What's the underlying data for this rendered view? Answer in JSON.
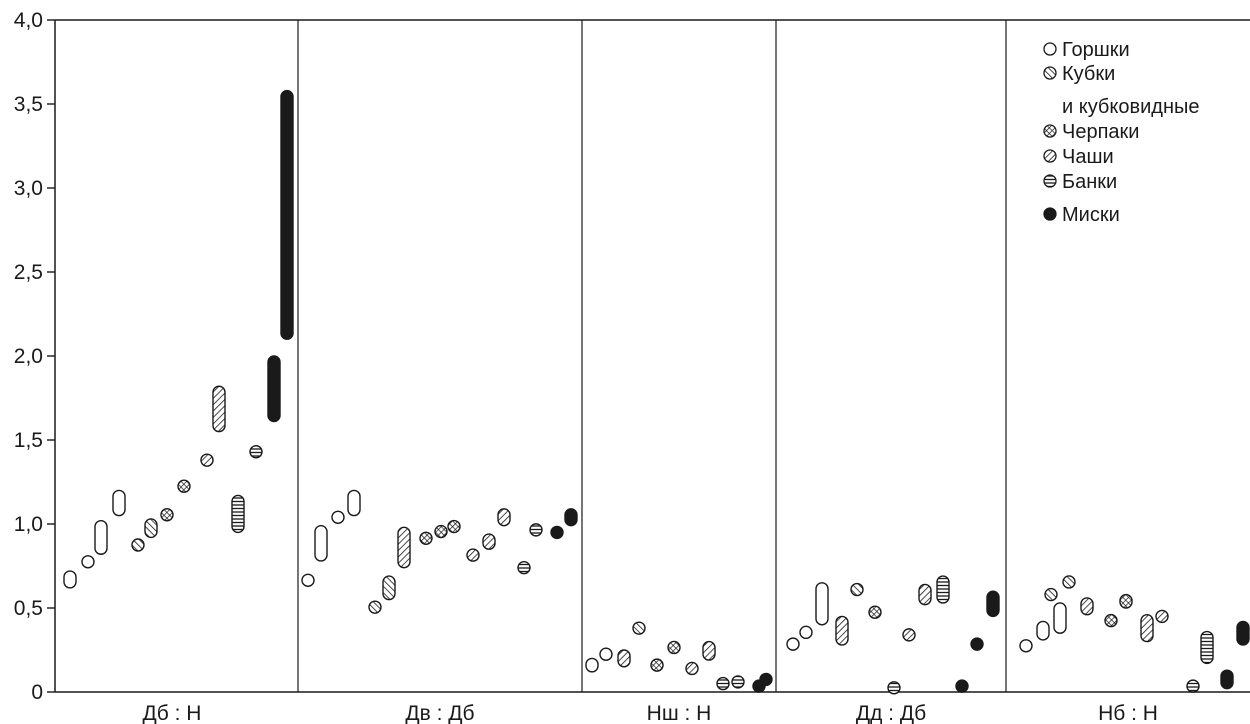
{
  "chart_data": {
    "type": "scatter",
    "ylim": [
      0,
      4
    ],
    "yticks": [
      "0",
      "0,5",
      "1,0",
      "1,5",
      "2,0",
      "2,5",
      "3,0",
      "3,5",
      "4,0"
    ],
    "categories": [
      "Дб : Н",
      "Дв : Дб",
      "Нш : Н",
      "Дд : Дб",
      "Нб : Н"
    ],
    "legend": {
      "position": "top-right",
      "items": [
        {
          "key": "gorshki",
          "label": "Горшки",
          "pattern": "open"
        },
        {
          "key": "kubki",
          "label": "Кубки",
          "label2": "и кубковидные",
          "pattern": "hatch-back"
        },
        {
          "key": "cherpaki",
          "label": "Черпаки",
          "pattern": "crosshatch"
        },
        {
          "key": "chashi",
          "label": "Чаши",
          "pattern": "hatch-fwd"
        },
        {
          "key": "banki",
          "label": "Банки",
          "pattern": "horizontal"
        },
        {
          "key": "miski",
          "label": "Миски",
          "pattern": "solid"
        }
      ]
    },
    "series": [
      {
        "key": "gorshki",
        "ranges": [
          {
            "g": 0,
            "lo": 0.62,
            "hi": 0.72
          },
          {
            "g": 0,
            "lo": 0.75,
            "hi": 0.8
          },
          {
            "g": 0,
            "lo": 0.82,
            "hi": 1.02
          },
          {
            "g": 0,
            "lo": 1.05,
            "hi": 1.2
          },
          {
            "g": 1,
            "lo": 0.64,
            "hi": 0.69
          },
          {
            "g": 1,
            "lo": 0.78,
            "hi": 0.99
          },
          {
            "g": 1,
            "lo": 1.01,
            "hi": 1.07
          },
          {
            "g": 1,
            "lo": 1.05,
            "hi": 1.2
          },
          {
            "g": 2,
            "lo": 0.12,
            "hi": 0.2
          },
          {
            "g": 2,
            "lo": 0.2,
            "hi": 0.25
          },
          {
            "g": 3,
            "lo": 0.26,
            "hi": 0.31
          },
          {
            "g": 3,
            "lo": 0.33,
            "hi": 0.38
          },
          {
            "g": 3,
            "lo": 0.4,
            "hi": 0.65
          },
          {
            "g": 4,
            "lo": 0.25,
            "hi": 0.3
          },
          {
            "g": 4,
            "lo": 0.31,
            "hi": 0.42
          },
          {
            "g": 4,
            "lo": 0.35,
            "hi": 0.53
          }
        ]
      },
      {
        "key": "kubki",
        "ranges": [
          {
            "g": 0,
            "lo": 0.86,
            "hi": 0.89
          },
          {
            "g": 0,
            "lo": 0.92,
            "hi": 1.03
          },
          {
            "g": 1,
            "lo": 0.49,
            "hi": 0.52
          },
          {
            "g": 1,
            "lo": 0.55,
            "hi": 0.69
          },
          {
            "g": 2,
            "lo": 0.36,
            "hi": 0.4
          },
          {
            "g": 3,
            "lo": 0.58,
            "hi": 0.64
          },
          {
            "g": 4,
            "lo": 0.63,
            "hi": 0.68
          },
          {
            "g": 4,
            "lo": 0.56,
            "hi": 0.6
          }
        ]
      },
      {
        "key": "cherpaki",
        "ranges": [
          {
            "g": 0,
            "lo": 1.04,
            "hi": 1.07
          },
          {
            "g": 0,
            "lo": 1.21,
            "hi": 1.24
          },
          {
            "g": 1,
            "lo": 0.9,
            "hi": 0.93
          },
          {
            "g": 1,
            "lo": 0.94,
            "hi": 0.97
          },
          {
            "g": 1,
            "lo": 0.97,
            "hi": 1.0
          },
          {
            "g": 2,
            "lo": 0.14,
            "hi": 0.18
          },
          {
            "g": 2,
            "lo": 0.25,
            "hi": 0.28
          },
          {
            "g": 3,
            "lo": 0.45,
            "hi": 0.5
          },
          {
            "g": 4,
            "lo": 0.41,
            "hi": 0.44
          },
          {
            "g": 4,
            "lo": 0.5,
            "hi": 0.58
          }
        ]
      },
      {
        "key": "chashi",
        "ranges": [
          {
            "g": 0,
            "lo": 1.35,
            "hi": 1.41
          },
          {
            "g": 0,
            "lo": 1.55,
            "hi": 1.82
          },
          {
            "g": 1,
            "lo": 0.74,
            "hi": 0.98
          },
          {
            "g": 1,
            "lo": 0.8,
            "hi": 0.83
          },
          {
            "g": 1,
            "lo": 0.85,
            "hi": 0.94
          },
          {
            "g": 1,
            "lo": 0.99,
            "hi": 1.09
          },
          {
            "g": 2,
            "lo": 0.15,
            "hi": 0.25
          },
          {
            "g": 2,
            "lo": 0.12,
            "hi": 0.16
          },
          {
            "g": 2,
            "lo": 0.19,
            "hi": 0.3
          },
          {
            "g": 3,
            "lo": 0.28,
            "hi": 0.45
          },
          {
            "g": 3,
            "lo": 0.32,
            "hi": 0.36
          },
          {
            "g": 3,
            "lo": 0.52,
            "hi": 0.64
          },
          {
            "g": 4,
            "lo": 0.46,
            "hi": 0.56
          },
          {
            "g": 4,
            "lo": 0.3,
            "hi": 0.46
          },
          {
            "g": 4,
            "lo": 0.43,
            "hi": 0.47
          }
        ]
      },
      {
        "key": "banki",
        "ranges": [
          {
            "g": 0,
            "lo": 0.95,
            "hi": 1.17
          },
          {
            "g": 0,
            "lo": 1.41,
            "hi": 1.45
          },
          {
            "g": 1,
            "lo": 0.72,
            "hi": 0.76
          },
          {
            "g": 1,
            "lo": 0.93,
            "hi": 1.0
          },
          {
            "g": 2,
            "lo": 0.03,
            "hi": 0.07
          },
          {
            "g": 2,
            "lo": 0.04,
            "hi": 0.08
          },
          {
            "g": 3,
            "lo": 0.01,
            "hi": 0.04
          },
          {
            "g": 3,
            "lo": 0.53,
            "hi": 0.69
          },
          {
            "g": 4,
            "lo": 0.02,
            "hi": 0.05
          },
          {
            "g": 4,
            "lo": 0.17,
            "hi": 0.36
          }
        ]
      },
      {
        "key": "miski",
        "ranges": [
          {
            "g": 0,
            "lo": 1.61,
            "hi": 2.0
          },
          {
            "g": 0,
            "lo": 2.1,
            "hi": 3.58
          },
          {
            "g": 1,
            "lo": 0.93,
            "hi": 0.97
          },
          {
            "g": 1,
            "lo": 0.99,
            "hi": 1.09
          },
          {
            "g": 2,
            "lo": 0.02,
            "hi": 0.05
          },
          {
            "g": 2,
            "lo": 0.06,
            "hi": 0.09
          },
          {
            "g": 3,
            "lo": 0.02,
            "hi": 0.05
          },
          {
            "g": 3,
            "lo": 0.26,
            "hi": 0.31
          },
          {
            "g": 3,
            "lo": 0.45,
            "hi": 0.6
          },
          {
            "g": 4,
            "lo": 0.02,
            "hi": 0.13
          },
          {
            "g": 4,
            "lo": 0.28,
            "hi": 0.42
          }
        ]
      }
    ],
    "colors": {
      "ink": "#1a1a1a",
      "background": "#ffffff"
    }
  }
}
